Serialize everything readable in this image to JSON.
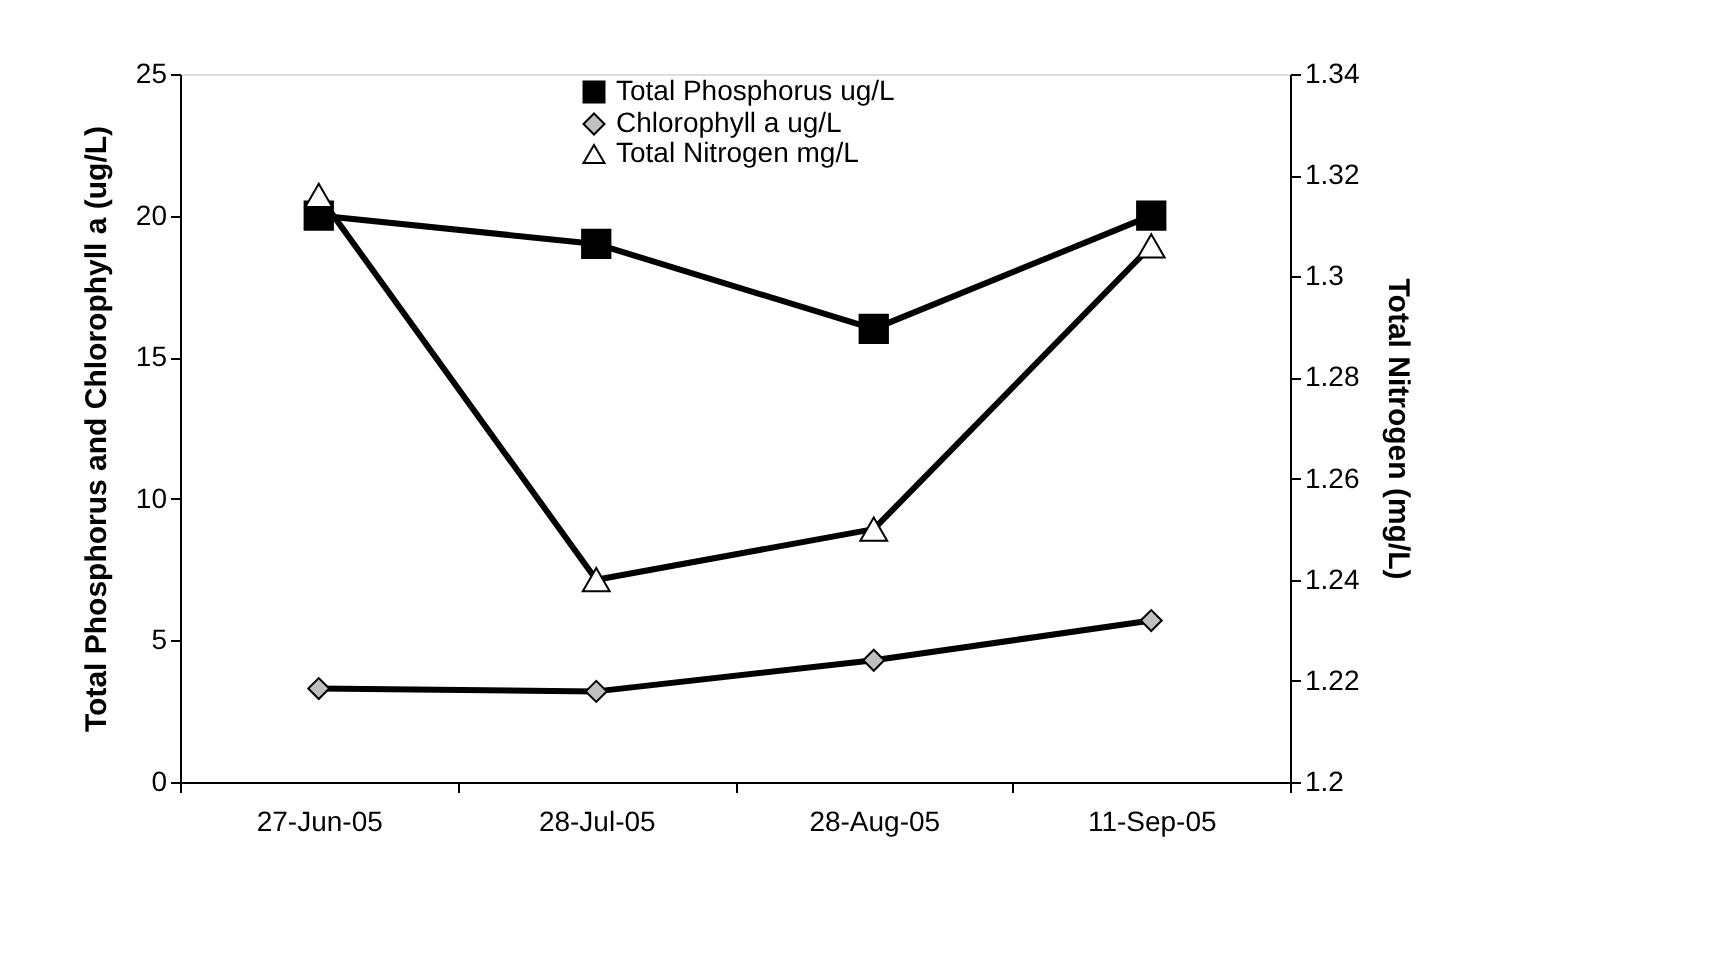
{
  "chart_data": {
    "type": "line",
    "categories": [
      "27-Jun-05",
      "28-Jul-05",
      "28-Aug-05",
      "11-Sep-05"
    ],
    "ylabel": "Total Phosphorus and Chlorophyll a (ug/L)",
    "y2label": "Total Nitrogen (mg/L)",
    "ylim": [
      0,
      25
    ],
    "yticks": [
      0,
      5,
      10,
      15,
      20,
      25
    ],
    "y2lim": [
      1.2,
      1.34
    ],
    "y2ticks": [
      1.2,
      1.22,
      1.24,
      1.26,
      1.28,
      1.3,
      1.32,
      1.34
    ],
    "grid": false,
    "legend": "top",
    "line_style": "solid",
    "series": [
      {
        "name": "Total Phosphorus ug/L",
        "color": "#000000",
        "marker": "square",
        "values": [
          20,
          19,
          16,
          20
        ]
      },
      {
        "name": "Chlorophyll a ug/L",
        "color": "#c0c0c0",
        "marker": "diamond",
        "values": [
          3.3,
          3.2,
          4.3,
          5.7
        ]
      },
      {
        "name": "Total Nitrogen mg/L",
        "color": "#ffffff",
        "marker": "triangle",
        "axis": "y2",
        "values": [
          1.316,
          1.24,
          1.25,
          1.306
        ]
      }
    ]
  }
}
